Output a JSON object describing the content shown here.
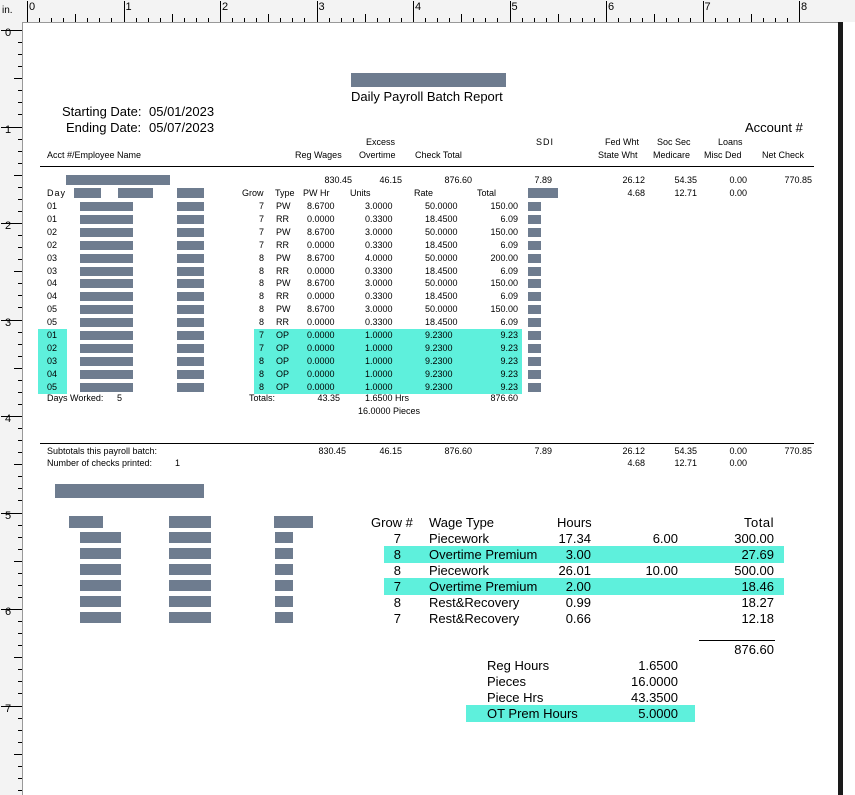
{
  "ruler": {
    "unit_label": "in.",
    "top_numbers": [
      "0",
      "1",
      "2",
      "3",
      "4",
      "5",
      "6",
      "7",
      "8"
    ],
    "left_numbers": [
      "0",
      "1",
      "2",
      "3",
      "4",
      "5",
      "6",
      "7"
    ]
  },
  "report": {
    "title": "Daily Payroll Batch Report",
    "starting_date_label": "Starting Date:",
    "starting_date": "05/01/2023",
    "ending_date_label": "Ending Date:",
    "ending_date": "05/07/2023",
    "account_label": "Account #"
  },
  "headers": {
    "acct_emp": "Acct #/Employee Name",
    "reg_wages": "Reg  Wages",
    "excess": "Excess",
    "overtime": "Overtime",
    "check_total": "Check Total",
    "sdi": "SDI",
    "fed_wht": "Fed Wht",
    "state_wht": "State Wht",
    "soc_sec": "Soc Sec",
    "medicare": "Medicare",
    "loans": "Loans",
    "misc_ded": "Misc Ded",
    "net_check": "Net  Check"
  },
  "employee_summary": {
    "reg_wages": "830.45",
    "overtime": "46.15",
    "check_total": "876.60",
    "sdi": "7.89",
    "fed_wht": "26.12",
    "state_wht": "4.68",
    "soc_sec": "54.35",
    "medicare": "12.71",
    "loans": "0.00",
    "misc_ded": "0.00",
    "net_check": "770.85"
  },
  "detail_headers": {
    "day": "Day",
    "grow": "Grow",
    "type": "Type",
    "pw_hr": "PW Hr",
    "units": "Units",
    "rate": "Rate",
    "total": "Total"
  },
  "detail_rows": [
    {
      "day": "01",
      "grow": "7",
      "type": "PW",
      "pw_hr": "8.6700",
      "units": "3.0000",
      "rate": "50.0000",
      "total": "150.00",
      "hl": false
    },
    {
      "day": "01",
      "grow": "7",
      "type": "RR",
      "pw_hr": "0.0000",
      "units": "0.3300",
      "rate": "18.4500",
      "total": "6.09",
      "hl": false
    },
    {
      "day": "02",
      "grow": "7",
      "type": "PW",
      "pw_hr": "8.6700",
      "units": "3.0000",
      "rate": "50.0000",
      "total": "150.00",
      "hl": false
    },
    {
      "day": "02",
      "grow": "7",
      "type": "RR",
      "pw_hr": "0.0000",
      "units": "0.3300",
      "rate": "18.4500",
      "total": "6.09",
      "hl": false
    },
    {
      "day": "03",
      "grow": "8",
      "type": "PW",
      "pw_hr": "8.6700",
      "units": "4.0000",
      "rate": "50.0000",
      "total": "200.00",
      "hl": false
    },
    {
      "day": "03",
      "grow": "8",
      "type": "RR",
      "pw_hr": "0.0000",
      "units": "0.3300",
      "rate": "18.4500",
      "total": "6.09",
      "hl": false
    },
    {
      "day": "04",
      "grow": "8",
      "type": "PW",
      "pw_hr": "8.6700",
      "units": "3.0000",
      "rate": "50.0000",
      "total": "150.00",
      "hl": false
    },
    {
      "day": "04",
      "grow": "8",
      "type": "RR",
      "pw_hr": "0.0000",
      "units": "0.3300",
      "rate": "18.4500",
      "total": "6.09",
      "hl": false
    },
    {
      "day": "05",
      "grow": "8",
      "type": "PW",
      "pw_hr": "8.6700",
      "units": "3.0000",
      "rate": "50.0000",
      "total": "150.00",
      "hl": false
    },
    {
      "day": "05",
      "grow": "8",
      "type": "RR",
      "pw_hr": "0.0000",
      "units": "0.3300",
      "rate": "18.4500",
      "total": "6.09",
      "hl": false
    },
    {
      "day": "01",
      "grow": "7",
      "type": "OP",
      "pw_hr": "0.0000",
      "units": "1.0000",
      "rate": "9.2300",
      "total": "9.23",
      "hl": true
    },
    {
      "day": "02",
      "grow": "7",
      "type": "OP",
      "pw_hr": "0.0000",
      "units": "1.0000",
      "rate": "9.2300",
      "total": "9.23",
      "hl": true
    },
    {
      "day": "03",
      "grow": "8",
      "type": "OP",
      "pw_hr": "0.0000",
      "units": "1.0000",
      "rate": "9.2300",
      "total": "9.23",
      "hl": true
    },
    {
      "day": "04",
      "grow": "8",
      "type": "OP",
      "pw_hr": "0.0000",
      "units": "1.0000",
      "rate": "9.2300",
      "total": "9.23",
      "hl": true
    },
    {
      "day": "05",
      "grow": "8",
      "type": "OP",
      "pw_hr": "0.0000",
      "units": "1.0000",
      "rate": "9.2300",
      "total": "9.23",
      "hl": true
    }
  ],
  "detail_totals": {
    "days_worked_label": "Days  Worked:",
    "days_worked": "5",
    "totals_label": "Totals:",
    "pw_hr": "43.35",
    "units_hrs": "1.6500 Hrs",
    "pieces": "16.0000 Pieces",
    "total": "876.60"
  },
  "batch": {
    "subtotals_label": "Subtotals this payroll batch:",
    "checks_printed_label": "Number of checks printed:",
    "checks_printed": "1",
    "reg_wages": "830.45",
    "overtime": "46.15",
    "check_total": "876.60",
    "sdi": "7.89",
    "fed_wht": "26.12",
    "state_wht": "4.68",
    "soc_sec": "54.35",
    "medicare": "12.71",
    "loans": "0.00",
    "misc_ded": "0.00",
    "net_check": "770.85"
  },
  "wage_summary": {
    "headers": {
      "grow": "Grow #",
      "wage_type": "Wage Type",
      "hours": "Hours",
      "total": "Total"
    },
    "rows": [
      {
        "grow": "7",
        "type": "Piecework",
        "hours": "17.34",
        "rate": "6.00",
        "total": "300.00",
        "hl": false
      },
      {
        "grow": "8",
        "type": "Overtime  Premium",
        "hours": "3.00",
        "rate": "",
        "total": "27.69",
        "hl": true
      },
      {
        "grow": "8",
        "type": "Piecework",
        "hours": "26.01",
        "rate": "10.00",
        "total": "500.00",
        "hl": false
      },
      {
        "grow": "7",
        "type": "Overtime  Premium",
        "hours": "2.00",
        "rate": "",
        "total": "18.46",
        "hl": true
      },
      {
        "grow": "8",
        "type": "Rest&Recovery",
        "hours": "0.99",
        "rate": "",
        "total": "18.27",
        "hl": false
      },
      {
        "grow": "7",
        "type": "Rest&Recovery",
        "hours": "0.66",
        "rate": "",
        "total": "12.18",
        "hl": false
      }
    ],
    "grand_total": "876.60"
  },
  "hours_summary": [
    {
      "label": "Reg Hours",
      "value": "1.6500",
      "hl": false
    },
    {
      "label": "Pieces",
      "value": "16.0000",
      "hl": false
    },
    {
      "label": "Piece Hrs",
      "value": "43.3500",
      "hl": false
    },
    {
      "label": "OT Prem Hours",
      "value": "5.0000",
      "hl": true
    }
  ]
}
